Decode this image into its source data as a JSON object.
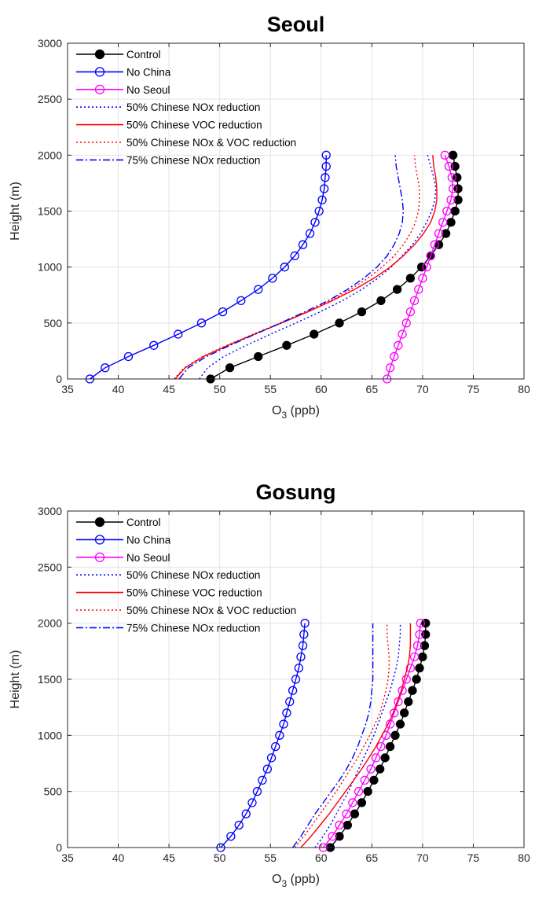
{
  "chart_data": [
    {
      "type": "line",
      "title": "Seoul",
      "xlabel": "O",
      "xlabel_sub": "3",
      "xlabel_unit": " (ppb)",
      "ylabel": "Height (m)",
      "xlim": [
        35,
        80
      ],
      "ylim": [
        0,
        3000
      ],
      "xticks": [
        35,
        40,
        45,
        50,
        55,
        60,
        65,
        70,
        75,
        80
      ],
      "yticks": [
        0,
        500,
        1000,
        1500,
        2000,
        2500,
        3000
      ],
      "grid": true,
      "legend": "top-left",
      "y": [
        0,
        100,
        200,
        300,
        400,
        500,
        600,
        700,
        800,
        900,
        1000,
        1100,
        1200,
        1300,
        1400,
        1500,
        1600,
        1700,
        1800,
        1900,
        2000
      ],
      "series": [
        {
          "name": "Control",
          "color": "#000000",
          "style": "solid",
          "marker": "filled-circle",
          "values": [
            49.1,
            51.0,
            53.8,
            56.6,
            59.3,
            61.8,
            64.0,
            65.9,
            67.5,
            68.8,
            69.9,
            70.8,
            71.6,
            72.3,
            72.8,
            73.2,
            73.5,
            73.5,
            73.4,
            73.2,
            73.0
          ]
        },
        {
          "name": "No China",
          "color": "#0000ff",
          "style": "solid",
          "marker": "open-circle",
          "values": [
            37.2,
            38.7,
            41.0,
            43.5,
            45.9,
            48.2,
            50.3,
            52.1,
            53.8,
            55.2,
            56.4,
            57.4,
            58.2,
            58.9,
            59.4,
            59.8,
            60.1,
            60.3,
            60.4,
            60.5,
            60.5
          ]
        },
        {
          "name": "No Seoul",
          "color": "#ff00ff",
          "style": "solid",
          "marker": "open-circle",
          "values": [
            66.5,
            66.8,
            67.2,
            67.6,
            68.0,
            68.4,
            68.8,
            69.2,
            69.6,
            70.0,
            70.4,
            70.8,
            71.2,
            71.6,
            72.0,
            72.4,
            72.8,
            73.0,
            72.9,
            72.6,
            72.2
          ]
        },
        {
          "name": "50% Chinese NOx reduction",
          "color": "#0000ff",
          "style": "dotted",
          "marker": "none",
          "values": [
            48.0,
            48.8,
            50.4,
            52.6,
            55.0,
            57.5,
            59.9,
            62.1,
            64.0,
            65.6,
            66.9,
            68.0,
            69.0,
            69.8,
            70.4,
            70.9,
            71.2,
            71.3,
            71.1,
            70.8,
            70.5
          ]
        },
        {
          "name": "50% Chinese VOC reduction",
          "color": "#ff0000",
          "style": "solid",
          "marker": "none",
          "values": [
            45.6,
            46.6,
            48.4,
            50.8,
            53.4,
            56.1,
            58.7,
            61.1,
            63.3,
            65.2,
            66.8,
            68.1,
            69.2,
            70.1,
            70.8,
            71.2,
            71.4,
            71.4,
            71.3,
            71.1,
            71.0
          ]
        },
        {
          "name": "50% Chinese NOx & VOC reduction",
          "color": "#ff0000",
          "style": "dotted",
          "marker": "none",
          "values": [
            45.5,
            46.5,
            48.3,
            50.7,
            53.3,
            56.0,
            58.6,
            60.9,
            62.9,
            64.6,
            66.0,
            67.2,
            68.1,
            68.8,
            69.3,
            69.6,
            69.7,
            69.7,
            69.5,
            69.3,
            69.2
          ]
        },
        {
          "name": "75% Chinese NOx reduction",
          "color": "#0000ff",
          "style": "dashdot",
          "marker": "none",
          "values": [
            46.0,
            46.9,
            48.7,
            51.0,
            53.5,
            56.0,
            58.4,
            60.7,
            62.6,
            64.2,
            65.5,
            66.5,
            67.2,
            67.7,
            68.0,
            68.1,
            68.0,
            67.8,
            67.6,
            67.4,
            67.3
          ]
        }
      ]
    },
    {
      "type": "line",
      "title": "Gosung",
      "xlabel": "O",
      "xlabel_sub": "3",
      "xlabel_unit": " (ppb)",
      "ylabel": "Height (m)",
      "xlim": [
        35,
        80
      ],
      "ylim": [
        0,
        3000
      ],
      "xticks": [
        35,
        40,
        45,
        50,
        55,
        60,
        65,
        70,
        75,
        80
      ],
      "yticks": [
        0,
        500,
        1000,
        1500,
        2000,
        2500,
        3000
      ],
      "grid": true,
      "legend": "top-left",
      "y": [
        0,
        100,
        200,
        300,
        400,
        500,
        600,
        700,
        800,
        900,
        1000,
        1100,
        1200,
        1300,
        1400,
        1500,
        1600,
        1700,
        1800,
        1900,
        2000
      ],
      "series": [
        {
          "name": "Control",
          "color": "#000000",
          "style": "solid",
          "marker": "filled-circle",
          "values": [
            60.9,
            61.8,
            62.6,
            63.3,
            64.0,
            64.6,
            65.2,
            65.8,
            66.3,
            66.8,
            67.3,
            67.8,
            68.2,
            68.6,
            69.0,
            69.4,
            69.7,
            70.0,
            70.2,
            70.3,
            70.3
          ]
        },
        {
          "name": "No China",
          "color": "#0000ff",
          "style": "solid",
          "marker": "open-circle",
          "values": [
            50.1,
            51.1,
            51.9,
            52.6,
            53.2,
            53.7,
            54.2,
            54.7,
            55.1,
            55.5,
            55.9,
            56.3,
            56.6,
            56.9,
            57.2,
            57.5,
            57.8,
            58.0,
            58.2,
            58.3,
            58.4
          ]
        },
        {
          "name": "No Seoul",
          "color": "#ff00ff",
          "style": "solid",
          "marker": "open-circle",
          "values": [
            60.2,
            61.1,
            61.8,
            62.5,
            63.1,
            63.7,
            64.3,
            64.9,
            65.4,
            65.9,
            66.4,
            66.8,
            67.2,
            67.6,
            68.0,
            68.4,
            68.8,
            69.2,
            69.5,
            69.7,
            69.8
          ]
        },
        {
          "name": "50% Chinese NOx reduction",
          "color": "#0000ff",
          "style": "dotted",
          "marker": "none",
          "values": [
            59.4,
            60.2,
            60.9,
            61.5,
            62.1,
            62.7,
            63.2,
            63.7,
            64.2,
            64.7,
            65.2,
            65.6,
            66.0,
            66.4,
            66.8,
            67.1,
            67.4,
            67.6,
            67.7,
            67.8,
            67.8
          ]
        },
        {
          "name": "50% Chinese VOC reduction",
          "color": "#ff0000",
          "style": "solid",
          "marker": "none",
          "values": [
            58.0,
            59.0,
            59.9,
            60.8,
            61.6,
            62.4,
            63.2,
            64.0,
            64.7,
            65.4,
            66.0,
            66.6,
            67.1,
            67.5,
            67.9,
            68.2,
            68.5,
            68.7,
            68.8,
            68.8,
            68.8
          ]
        },
        {
          "name": "50% Chinese NOx & VOC reduction",
          "color": "#ff0000",
          "style": "dotted",
          "marker": "none",
          "values": [
            57.4,
            58.3,
            59.1,
            59.9,
            60.7,
            61.5,
            62.2,
            62.9,
            63.6,
            64.2,
            64.8,
            65.3,
            65.8,
            66.1,
            66.4,
            66.6,
            66.7,
            66.7,
            66.6,
            66.5,
            66.5
          ]
        },
        {
          "name": "75% Chinese NOx reduction",
          "color": "#0000ff",
          "style": "dashdot",
          "marker": "none",
          "values": [
            57.2,
            58.0,
            58.7,
            59.4,
            60.2,
            61.0,
            61.8,
            62.5,
            63.1,
            63.6,
            64.0,
            64.4,
            64.7,
            64.9,
            65.0,
            65.1,
            65.1,
            65.1,
            65.1,
            65.1,
            65.1
          ]
        }
      ]
    }
  ]
}
